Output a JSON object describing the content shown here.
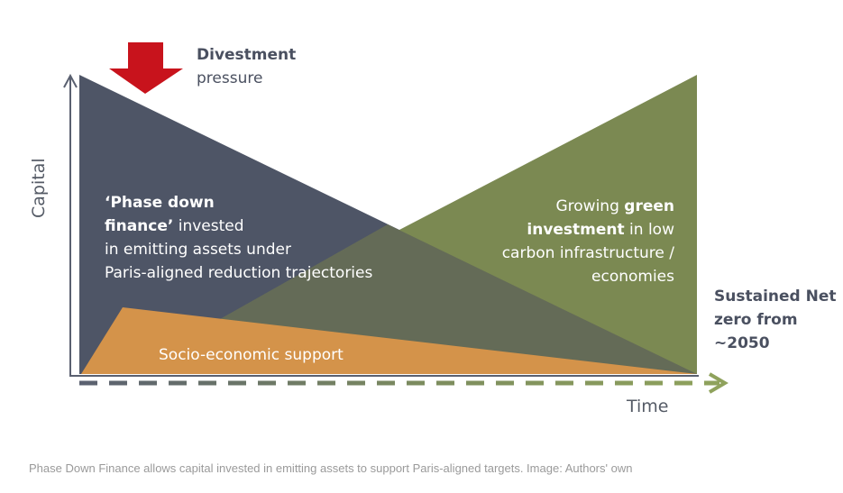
{
  "divestment": {
    "bold": "Divestment",
    "rest": "pressure"
  },
  "axes": {
    "y_label": "Capital",
    "x_label": "Time"
  },
  "phase_down": {
    "bold1": "‘Phase down",
    "bold2": "finance’",
    "rest2": " invested",
    "line3": "in emitting assets under",
    "line4": "Paris-aligned reduction trajectories"
  },
  "green": {
    "pre1": "Growing ",
    "bold1": "green",
    "bold2": "investment",
    "rest2": " in low",
    "line3": "carbon infrastructure /",
    "line4": "economies"
  },
  "socio": "Socio-economic support",
  "net_zero": {
    "line1": "Sustained Net",
    "line2": "zero from",
    "line3": "~2050"
  },
  "caption": "Phase Down Finance allows capital invested in emitting assets to support Paris-aligned targets. Image: Authors' own",
  "colors": {
    "emitting": "#4e5566",
    "green": "#7b8952",
    "overlap": "#646b57",
    "socio": "#d4934a",
    "arrow_red": "#c8131c",
    "axis": "#5a6070",
    "time_dash_start": "#5a6070",
    "time_dash_end": "#8fa25c"
  }
}
